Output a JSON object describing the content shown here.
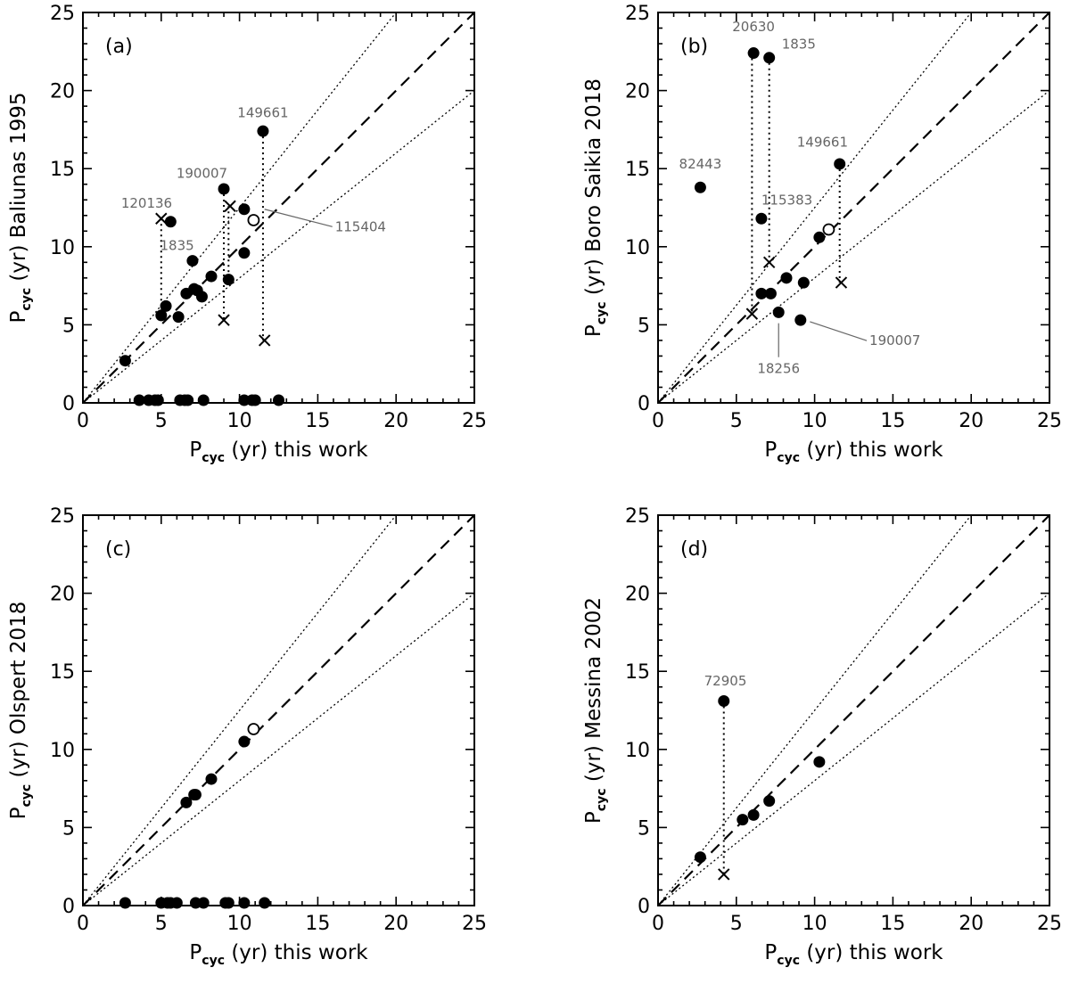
{
  "figure": {
    "x_axis_title": {
      "main": "P",
      "sub": "cyc",
      "rest": " (yr) this work"
    },
    "ticks": [
      0,
      5,
      10,
      15,
      20,
      25
    ]
  },
  "chart_data": [
    {
      "type": "scatter",
      "panel_label": "(a)",
      "ylabel": {
        "main": "P",
        "sub": "cyc",
        "rest": " (yr) Baliunas 1995"
      },
      "xlim": [
        0,
        25
      ],
      "ylim": [
        0,
        25
      ],
      "reference_lines": {
        "one_to_one": "dashed",
        "bounds": [
          0.8,
          1.25
        ],
        "bounds_style": "dotted"
      },
      "points_filled": [
        [
          2.7,
          2.7
        ],
        [
          5.0,
          5.6
        ],
        [
          5.3,
          6.2
        ],
        [
          5.6,
          11.6
        ],
        [
          6.1,
          5.5
        ],
        [
          6.6,
          7.0
        ],
        [
          7.0,
          9.1
        ],
        [
          7.1,
          7.3
        ],
        [
          7.3,
          7.2
        ],
        [
          7.6,
          6.8
        ],
        [
          8.2,
          8.1
        ],
        [
          9.0,
          13.7
        ],
        [
          9.3,
          7.9
        ],
        [
          10.3,
          12.4
        ],
        [
          10.3,
          9.6
        ],
        [
          11.5,
          17.4
        ]
      ],
      "points_open": [
        [
          10.9,
          11.7
        ]
      ],
      "points_cross": [
        [
          5.0,
          11.8
        ],
        [
          9.0,
          5.3
        ],
        [
          9.4,
          12.6
        ],
        [
          11.6,
          4.0
        ]
      ],
      "points_zero": [
        3.6,
        4.2,
        4.6,
        4.8,
        6.2,
        6.5,
        6.7,
        7.7,
        10.3,
        10.8,
        11.0,
        12.5
      ],
      "dotted_links": [
        [
          [
            5.0,
            11.8
          ],
          [
            5.0,
            5.6
          ]
        ],
        [
          [
            9.0,
            13.7
          ],
          [
            9.0,
            5.3
          ]
        ],
        [
          [
            9.3,
            12.6
          ],
          [
            9.3,
            7.9
          ]
        ],
        [
          [
            11.5,
            17.4
          ],
          [
            11.5,
            4.0
          ]
        ]
      ],
      "annotations": [
        {
          "text": "149661",
          "x": 11.5,
          "y": 18.3,
          "anchor": "middle"
        },
        {
          "text": "190007",
          "x": 7.6,
          "y": 14.4,
          "anchor": "middle"
        },
        {
          "text": "120136",
          "x": 5.7,
          "y": 12.5,
          "anchor": "end"
        },
        {
          "text": "1835",
          "x": 7.1,
          "y": 9.8,
          "anchor": "end"
        },
        {
          "text": "115404",
          "x": 16.1,
          "y": 11.0,
          "anchor": "start",
          "line_to": [
            11.6,
            12.4
          ]
        }
      ]
    },
    {
      "type": "scatter",
      "panel_label": "(b)",
      "ylabel": {
        "main": "P",
        "sub": "cyc",
        "rest": " (yr) Boro Saikia 2018"
      },
      "xlim": [
        0,
        25
      ],
      "ylim": [
        0,
        25
      ],
      "reference_lines": {
        "one_to_one": "dashed",
        "bounds": [
          0.8,
          1.25
        ],
        "bounds_style": "dotted"
      },
      "points_filled": [
        [
          2.7,
          13.8
        ],
        [
          6.1,
          22.4
        ],
        [
          7.1,
          22.1
        ],
        [
          6.6,
          11.8
        ],
        [
          6.6,
          7.0
        ],
        [
          7.2,
          7.0
        ],
        [
          7.7,
          5.8
        ],
        [
          8.2,
          8.0
        ],
        [
          9.1,
          5.3
        ],
        [
          9.3,
          7.7
        ],
        [
          10.3,
          10.6
        ],
        [
          11.6,
          15.3
        ]
      ],
      "points_open": [
        [
          10.9,
          11.1
        ]
      ],
      "points_cross": [
        [
          6.0,
          5.7
        ],
        [
          7.1,
          9.0
        ],
        [
          11.7,
          7.7
        ]
      ],
      "points_zero": [],
      "dotted_links": [
        [
          [
            6.0,
            22.4
          ],
          [
            6.0,
            5.7
          ]
        ],
        [
          [
            7.1,
            22.1
          ],
          [
            7.1,
            9.0
          ]
        ],
        [
          [
            11.6,
            15.3
          ],
          [
            11.6,
            7.7
          ]
        ]
      ],
      "annotations": [
        {
          "text": "20630",
          "x": 6.1,
          "y": 23.8,
          "anchor": "middle"
        },
        {
          "text": "1835",
          "x": 7.9,
          "y": 22.7,
          "anchor": "start"
        },
        {
          "text": "82443",
          "x": 2.7,
          "y": 15.0,
          "anchor": "middle"
        },
        {
          "text": "115383",
          "x": 6.6,
          "y": 12.7,
          "anchor": "start"
        },
        {
          "text": "149661",
          "x": 10.5,
          "y": 16.4,
          "anchor": "middle"
        },
        {
          "text": "190007",
          "x": 13.5,
          "y": 3.7,
          "anchor": "start",
          "line_to": [
            9.7,
            5.2
          ]
        },
        {
          "text": "18256",
          "x": 7.7,
          "y": 1.9,
          "anchor": "middle",
          "line_to": [
            7.7,
            5.1
          ]
        }
      ]
    },
    {
      "type": "scatter",
      "panel_label": "(c)",
      "ylabel": {
        "main": "P",
        "sub": "cyc",
        "rest": " (yr) Olspert 2018"
      },
      "xlim": [
        0,
        25
      ],
      "ylim": [
        0,
        25
      ],
      "reference_lines": {
        "one_to_one": "dashed",
        "bounds": [
          0.8,
          1.25
        ],
        "bounds_style": "dotted"
      },
      "points_filled": [
        [
          6.6,
          6.6
        ],
        [
          7.1,
          7.1
        ],
        [
          7.2,
          7.1
        ],
        [
          8.2,
          8.1
        ],
        [
          10.3,
          10.5
        ]
      ],
      "points_open": [
        [
          10.9,
          11.3
        ]
      ],
      "points_cross": [],
      "points_zero": [
        2.7,
        5.0,
        5.4,
        5.6,
        6.0,
        7.2,
        7.7,
        9.1,
        9.3,
        10.3,
        11.6
      ],
      "dotted_links": [],
      "annotations": []
    },
    {
      "type": "scatter",
      "panel_label": "(d)",
      "ylabel": {
        "main": "P",
        "sub": "cyc",
        "rest": " (yr) Messina 2002"
      },
      "xlim": [
        0,
        25
      ],
      "ylim": [
        0,
        25
      ],
      "reference_lines": {
        "one_to_one": "dashed",
        "bounds": [
          0.8,
          1.25
        ],
        "bounds_style": "dotted"
      },
      "points_filled": [
        [
          2.7,
          3.1
        ],
        [
          4.2,
          13.1
        ],
        [
          5.4,
          5.5
        ],
        [
          6.1,
          5.8
        ],
        [
          7.1,
          6.7
        ],
        [
          10.3,
          9.2
        ]
      ],
      "points_open": [],
      "points_cross": [
        [
          4.2,
          2.0
        ]
      ],
      "points_zero": [],
      "dotted_links": [
        [
          [
            4.2,
            13.1
          ],
          [
            4.2,
            2.0
          ]
        ]
      ],
      "annotations": [
        {
          "text": "72905",
          "x": 4.3,
          "y": 14.1,
          "anchor": "middle"
        }
      ]
    }
  ]
}
